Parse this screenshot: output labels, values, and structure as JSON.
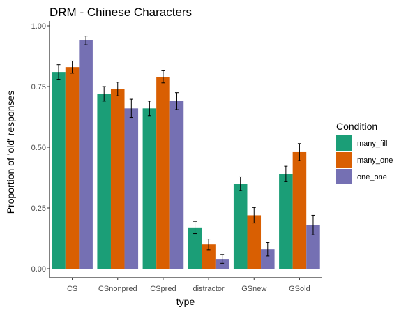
{
  "chart_data": {
    "type": "bar",
    "title": "DRM - Chinese Characters",
    "xlabel": "type",
    "ylabel": "Proportion of 'old' responses",
    "ylim": [
      0,
      1
    ],
    "yticks": [
      "0.00",
      "0.25",
      "0.50",
      "0.75",
      "1.00"
    ],
    "ytick_values": [
      0,
      0.25,
      0.5,
      0.75,
      1.0
    ],
    "grid": false,
    "legend": {
      "title": "Condition",
      "placement": "right"
    },
    "categories": [
      "CS",
      "CSnonpred",
      "CSpred",
      "distractor",
      "GSnew",
      "GSold"
    ],
    "series": [
      {
        "name": "many_fill",
        "color": "#1b9e77",
        "values": [
          0.81,
          0.72,
          0.66,
          0.17,
          0.35,
          0.39
        ],
        "error": [
          0.03,
          0.03,
          0.03,
          0.025,
          0.028,
          0.032
        ]
      },
      {
        "name": "many_one",
        "color": "#d95f02",
        "values": [
          0.83,
          0.74,
          0.79,
          0.1,
          0.22,
          0.48
        ],
        "error": [
          0.025,
          0.028,
          0.025,
          0.022,
          0.032,
          0.035
        ]
      },
      {
        "name": "one_one",
        "color": "#7570b3",
        "values": [
          0.94,
          0.66,
          0.69,
          0.04,
          0.08,
          0.18
        ],
        "error": [
          0.018,
          0.038,
          0.035,
          0.018,
          0.028,
          0.04
        ]
      }
    ]
  }
}
